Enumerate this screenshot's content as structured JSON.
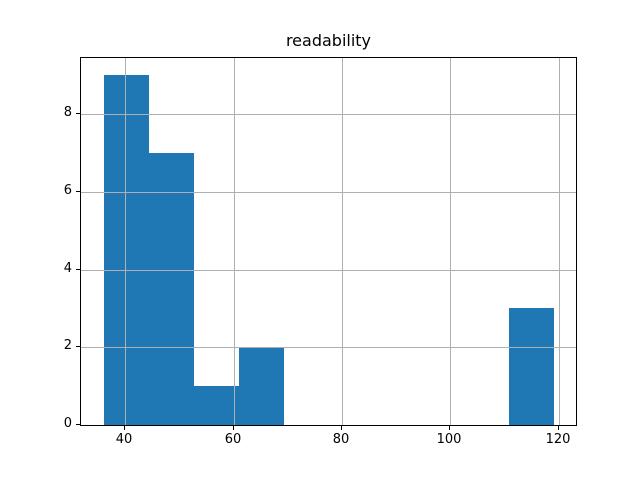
{
  "chart_data": {
    "type": "bar",
    "subtype": "histogram",
    "title": "readability",
    "xlabel": "",
    "ylabel": "",
    "bin_edges": [
      36.0,
      44.3,
      52.6,
      60.9,
      69.2,
      77.5,
      85.8,
      94.1,
      102.4,
      110.7,
      119.0
    ],
    "counts": [
      9,
      7,
      1,
      2,
      0,
      0,
      0,
      0,
      0,
      3
    ],
    "xticks": [
      40,
      60,
      80,
      100,
      120
    ],
    "yticks": [
      0,
      2,
      4,
      6,
      8
    ],
    "xlim": [
      31.85,
      123.15
    ],
    "ylim": [
      0,
      9.45
    ],
    "grid": true,
    "legend": null,
    "bar_color": "#1f77b4",
    "grid_color": "#b0b0b0",
    "axis_color": "#000000",
    "background_color": "#ffffff"
  }
}
